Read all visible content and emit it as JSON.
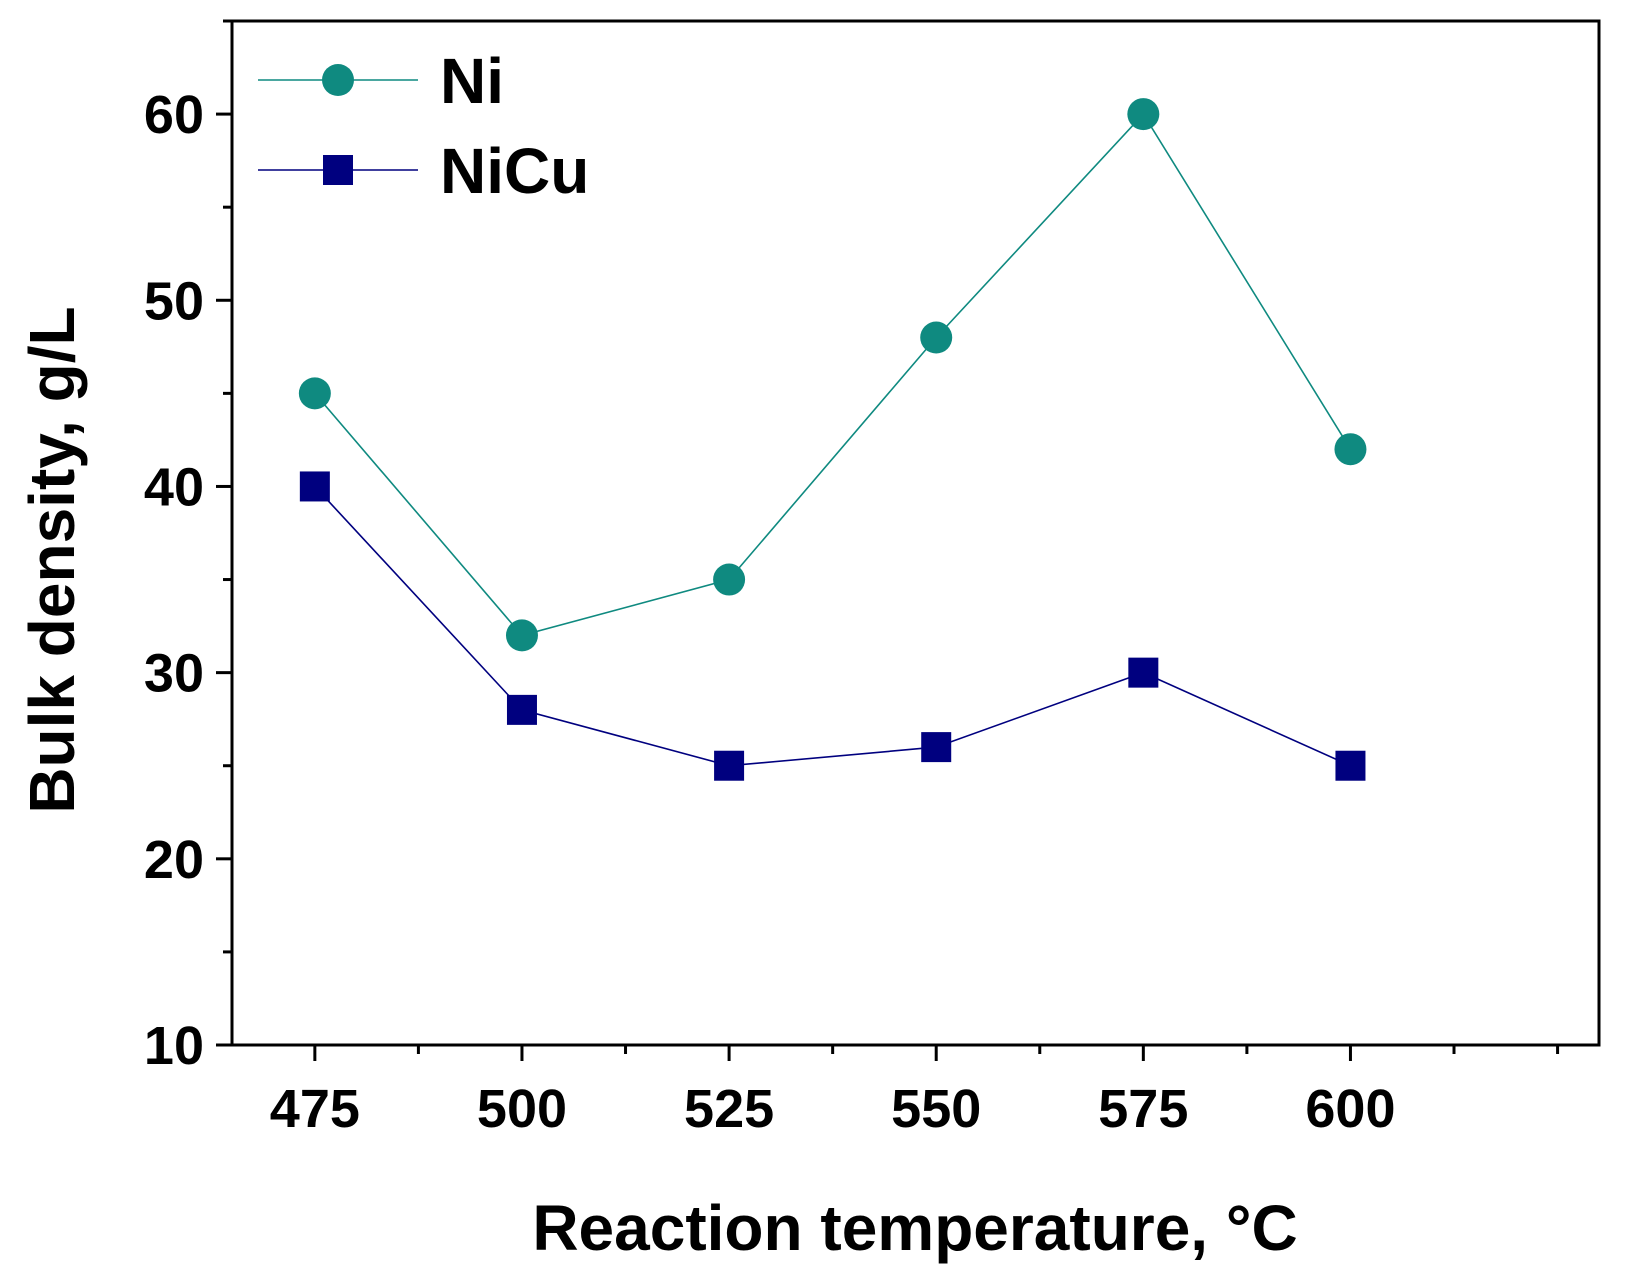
{
  "chart_data": {
    "type": "line",
    "title": "",
    "xlabel": "Reaction temperature, °C",
    "ylabel": "Bulk density, g/L",
    "x": [
      475,
      500,
      525,
      550,
      575,
      600
    ],
    "x_tick_labels": [
      "475",
      "500",
      "525",
      "550",
      "575",
      "600"
    ],
    "y_tick_labels": [
      "10",
      "20",
      "30",
      "40",
      "50",
      "60"
    ],
    "xlim": [
      465,
      630
    ],
    "ylim": [
      10,
      65
    ],
    "grid": false,
    "legend_position": "top-left",
    "series": [
      {
        "name": "Ni",
        "marker": "circle",
        "color": "#0f8a80",
        "values": [
          45,
          32,
          35,
          48,
          60,
          42
        ]
      },
      {
        "name": "NiCu",
        "marker": "square",
        "color": "#00007f",
        "values": [
          40,
          28,
          25,
          26,
          30,
          25
        ]
      }
    ]
  }
}
